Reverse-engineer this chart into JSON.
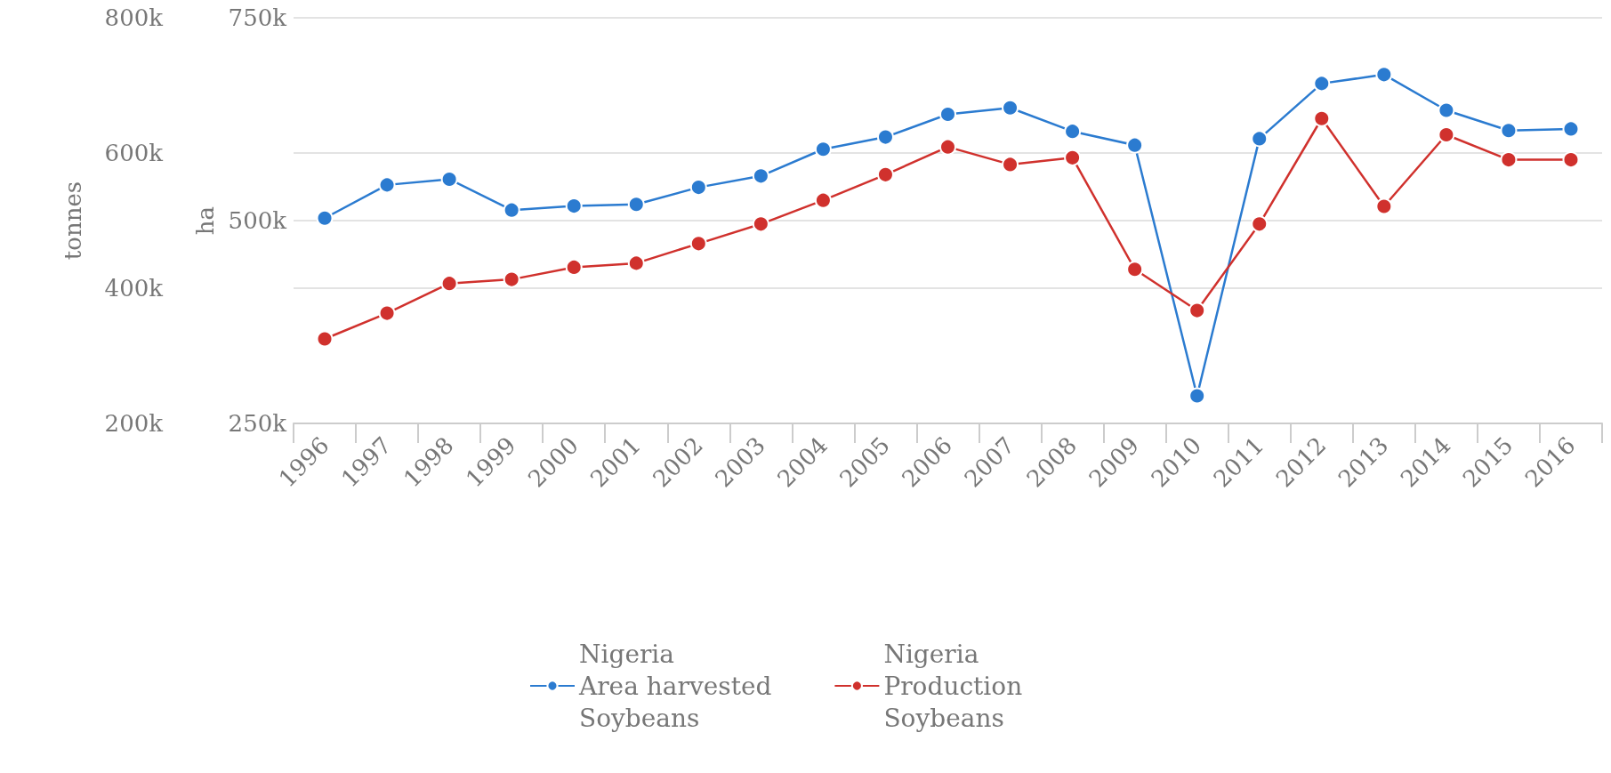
{
  "chart_data": {
    "type": "line",
    "categories": [
      "1996",
      "1997",
      "1998",
      "1999",
      "2000",
      "2001",
      "2002",
      "2003",
      "2004",
      "2005",
      "2006",
      "2007",
      "2008",
      "2009",
      "2010",
      "2011",
      "2012",
      "2013",
      "2014",
      "2015",
      "2016"
    ],
    "series": [
      {
        "name": "Nigeria\nArea harvested\nSoybeans",
        "color": "#2b7bd0",
        "axis": "y2",
        "values": [
          503000,
          544000,
          551000,
          513000,
          518000,
          520000,
          541000,
          555000,
          588000,
          603000,
          631000,
          639000,
          610000,
          593000,
          284000,
          601000,
          669000,
          680000,
          636000,
          611000,
          613000
        ]
      },
      {
        "name": "Nigeria\nProduction\nSoybeans",
        "color": "#d0312d",
        "values": [
          325000,
          363000,
          407000,
          413000,
          431000,
          437000,
          466000,
          495000,
          530000,
          568000,
          609000,
          583000,
          593000,
          428000,
          367000,
          495000,
          651000,
          521000,
          627000,
          590000,
          590000
        ]
      }
    ],
    "ylabel": "tonnes",
    "y2label": "ha",
    "ylim": [
      200000,
      800000
    ],
    "yticks": [
      {
        "value": 200000,
        "label": "200k"
      },
      {
        "value": 400000,
        "label": "400k"
      },
      {
        "value": 600000,
        "label": "600k"
      },
      {
        "value": 800000,
        "label": "800k"
      }
    ],
    "y2lim": [
      250000,
      750000
    ],
    "y2ticks": [
      {
        "value": 250000,
        "label": "250k"
      },
      {
        "value": 500000,
        "label": "500k"
      },
      {
        "value": 750000,
        "label": "750k"
      }
    ],
    "grid": "y",
    "legend": "bottom",
    "marker": "circle",
    "line_style": "solid"
  }
}
